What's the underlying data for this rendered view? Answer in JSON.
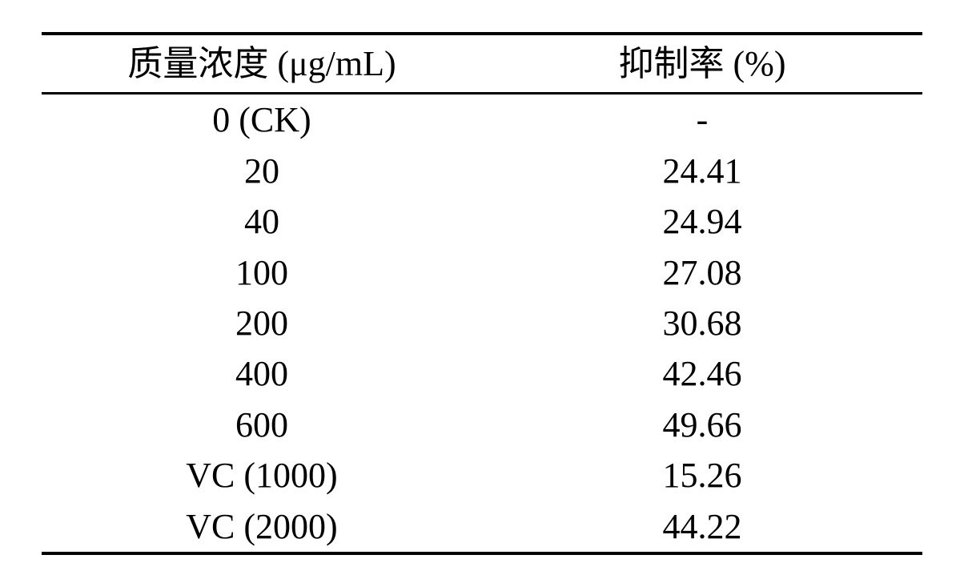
{
  "table": {
    "type": "table",
    "background_color": "#ffffff",
    "text_color": "#000000",
    "border_color": "#000000",
    "fontsize": 44,
    "border_top_width": 4,
    "border_header_bottom_width": 3,
    "border_bottom_width": 4,
    "columns": [
      {
        "header": "质量浓度 (μg/mL)",
        "align": "center"
      },
      {
        "header": "抑制率 (%)",
        "align": "center"
      }
    ],
    "rows": [
      [
        "0 (CK)",
        "-"
      ],
      [
        "20",
        "24.41"
      ],
      [
        "40",
        "24.94"
      ],
      [
        "100",
        "27.08"
      ],
      [
        "200",
        "30.68"
      ],
      [
        "400",
        "42.46"
      ],
      [
        "600",
        "49.66"
      ],
      [
        "VC (1000)",
        "15.26"
      ],
      [
        "VC (2000)",
        "44.22"
      ]
    ]
  }
}
